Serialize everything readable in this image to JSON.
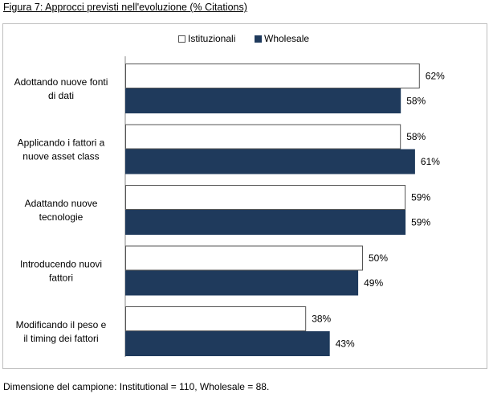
{
  "figure_title": "Figura 7: Approcci previsti nell'evoluzione (% Citations)",
  "footnote": "Dimensione del campione: Institutional = 110, Wholesale = 88.",
  "colors": {
    "istituzionali": "#ffffff",
    "wholesale": "#1f3a5c",
    "bar_border": "#555555",
    "axis": "#888888"
  },
  "chart_data": {
    "type": "bar",
    "orientation": "horizontal",
    "categories": [
      [
        "Adottando nuove fonti",
        "di dati"
      ],
      [
        "Applicando i fattori a",
        "nuove asset class"
      ],
      [
        "Adattando nuove",
        "tecnologie"
      ],
      [
        "Introducendo nuovi",
        "fattori"
      ],
      [
        "Modificando il peso e",
        "il timing dei fattori"
      ]
    ],
    "series": [
      {
        "name": "Istituzionali",
        "values": [
          62,
          58,
          59,
          50,
          38
        ],
        "labels": [
          "62%",
          "58%",
          "59%",
          "50%",
          "38%"
        ]
      },
      {
        "name": "Wholesale",
        "values": [
          58,
          61,
          59,
          49,
          43
        ],
        "labels": [
          "58%",
          "61%",
          "59%",
          "49%",
          "43%"
        ]
      }
    ],
    "xlim": [
      0,
      100
    ],
    "grid": false,
    "legend_position": "top"
  }
}
